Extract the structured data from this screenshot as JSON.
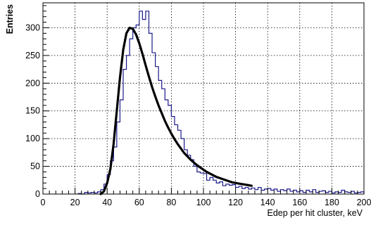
{
  "chart_data": {
    "type": "histogram",
    "xlabel": "Edep per hit cluster, keV",
    "ylabel": "Entries",
    "xlim": [
      0,
      200
    ],
    "ylim": [
      0,
      345
    ],
    "x_ticks": [
      0,
      20,
      40,
      60,
      80,
      100,
      120,
      140,
      160,
      180,
      200
    ],
    "y_ticks": [
      0,
      50,
      100,
      150,
      200,
      250,
      300
    ],
    "grid": true,
    "histogram": {
      "color": "#1a1a8c",
      "bin_width": 2,
      "bins": [
        [
          22,
          1
        ],
        [
          24,
          0
        ],
        [
          26,
          3
        ],
        [
          28,
          2
        ],
        [
          30,
          3
        ],
        [
          32,
          2
        ],
        [
          34,
          4
        ],
        [
          36,
          8
        ],
        [
          38,
          18
        ],
        [
          40,
          35
        ],
        [
          42,
          60
        ],
        [
          44,
          85
        ],
        [
          46,
          130
        ],
        [
          48,
          170
        ],
        [
          50,
          225
        ],
        [
          52,
          250
        ],
        [
          54,
          280
        ],
        [
          56,
          300
        ],
        [
          58,
          305
        ],
        [
          60,
          330
        ],
        [
          62,
          315
        ],
        [
          64,
          330
        ],
        [
          66,
          290
        ],
        [
          68,
          255
        ],
        [
          70,
          230
        ],
        [
          72,
          205
        ],
        [
          74,
          190
        ],
        [
          76,
          170
        ],
        [
          78,
          160
        ],
        [
          80,
          140
        ],
        [
          82,
          125
        ],
        [
          84,
          115
        ],
        [
          86,
          100
        ],
        [
          88,
          80
        ],
        [
          90,
          70
        ],
        [
          92,
          62
        ],
        [
          94,
          50
        ],
        [
          96,
          40
        ],
        [
          98,
          38
        ],
        [
          100,
          37
        ],
        [
          102,
          25
        ],
        [
          104,
          30
        ],
        [
          106,
          25
        ],
        [
          108,
          20
        ],
        [
          110,
          22
        ],
        [
          112,
          15
        ],
        [
          114,
          18
        ],
        [
          116,
          16
        ],
        [
          118,
          17
        ],
        [
          120,
          12
        ],
        [
          122,
          14
        ],
        [
          124,
          10
        ],
        [
          126,
          12
        ],
        [
          128,
          9
        ],
        [
          130,
          11
        ],
        [
          132,
          8
        ],
        [
          134,
          12
        ],
        [
          136,
          7
        ],
        [
          138,
          9
        ],
        [
          140,
          10
        ],
        [
          142,
          7
        ],
        [
          144,
          9
        ],
        [
          146,
          5
        ],
        [
          148,
          8
        ],
        [
          150,
          6
        ],
        [
          152,
          9
        ],
        [
          154,
          5
        ],
        [
          156,
          7
        ],
        [
          158,
          4
        ],
        [
          160,
          6
        ],
        [
          162,
          3
        ],
        [
          164,
          7
        ],
        [
          166,
          4
        ],
        [
          168,
          8
        ],
        [
          170,
          3
        ],
        [
          172,
          5
        ],
        [
          174,
          6
        ],
        [
          176,
          3
        ],
        [
          178,
          5
        ],
        [
          180,
          2
        ],
        [
          182,
          4
        ],
        [
          184,
          3
        ],
        [
          186,
          7
        ],
        [
          188,
          4
        ],
        [
          190,
          3
        ],
        [
          192,
          5
        ],
        [
          194,
          2
        ],
        [
          196,
          3
        ],
        [
          198,
          4
        ]
      ]
    },
    "fit": {
      "color": "#000000",
      "points": [
        [
          36,
          0
        ],
        [
          38,
          5
        ],
        [
          40,
          20
        ],
        [
          42,
          45
        ],
        [
          44,
          90
        ],
        [
          46,
          150
        ],
        [
          48,
          210
        ],
        [
          50,
          260
        ],
        [
          52,
          290
        ],
        [
          54,
          300
        ],
        [
          56,
          298
        ],
        [
          58,
          288
        ],
        [
          60,
          272
        ],
        [
          62,
          253
        ],
        [
          64,
          232
        ],
        [
          66,
          212
        ],
        [
          68,
          193
        ],
        [
          70,
          176
        ],
        [
          72,
          160
        ],
        [
          74,
          146
        ],
        [
          76,
          132
        ],
        [
          78,
          120
        ],
        [
          80,
          109
        ],
        [
          82,
          99
        ],
        [
          84,
          90
        ],
        [
          86,
          82
        ],
        [
          88,
          74
        ],
        [
          90,
          68
        ],
        [
          92,
          62
        ],
        [
          94,
          57
        ],
        [
          96,
          52
        ],
        [
          98,
          48
        ],
        [
          100,
          44
        ],
        [
          102,
          40
        ],
        [
          104,
          37
        ],
        [
          106,
          34
        ],
        [
          108,
          31
        ],
        [
          110,
          29
        ],
        [
          112,
          27
        ],
        [
          114,
          25
        ],
        [
          116,
          23
        ],
        [
          118,
          21
        ],
        [
          120,
          20
        ],
        [
          122,
          19
        ],
        [
          124,
          18
        ],
        [
          126,
          17
        ],
        [
          128,
          16
        ],
        [
          130,
          15
        ]
      ]
    }
  }
}
